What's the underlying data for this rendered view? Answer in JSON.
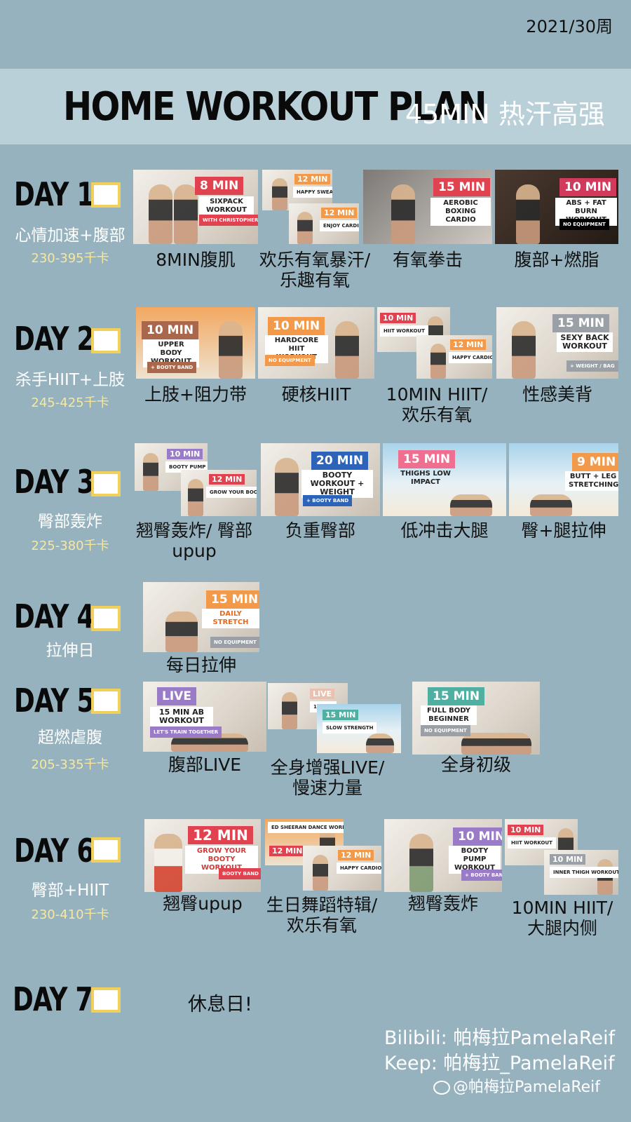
{
  "header": {
    "week": "2021/30周",
    "title": "HOME WORKOUT PLAN",
    "subtitle": "45MIN 热汗高强"
  },
  "days": [
    {
      "label": "DAY 1",
      "theme": "心情加速+腹部",
      "kcal": "230-395千卡",
      "workouts": [
        {
          "caption": "8MIN腹肌",
          "badge": "8 MIN",
          "tag": "SIXPACK WORKOUT",
          "extra": "WITH CHRISTOPHER"
        },
        {
          "caption": "欢乐有氧暴汗/ 乐趣有氧",
          "badge": "12 MIN",
          "tag": "HAPPY SWEAT WORKOUT",
          "badge2": "12 MIN",
          "tag2": "ENJOY CARDIO WORKOUT"
        },
        {
          "caption": "有氧拳击",
          "badge": "15 MIN",
          "tag": "AEROBIC BOXING CARDIO"
        },
        {
          "caption": "腹部+燃脂",
          "badge": "10 MIN",
          "tag": "ABS + FAT BURN WORKOUT",
          "extra": "NO EQUIPMENT"
        }
      ]
    },
    {
      "label": "DAY 2",
      "theme": "杀手HIIT+上肢",
      "kcal": "245-425千卡",
      "workouts": [
        {
          "caption": "上肢+阻力带",
          "badge": "10 MIN",
          "tag": "UPPER BODY WORKOUT",
          "extra": "+ BOOTY BAND"
        },
        {
          "caption": "硬核HIIT",
          "badge": "10 MIN",
          "tag": "HARDCORE HIIT WORKOUT",
          "extra": "NO EQUIPMENT"
        },
        {
          "caption": "10MIN HIIT/ 欢乐有氧",
          "badge": "10 MIN",
          "tag": "HIIT WORKOUT",
          "badge2": "12 MIN",
          "tag2": "HAPPY CARDIO WORKOUT"
        },
        {
          "caption": "性感美背",
          "badge": "15 MIN",
          "tag": "SEXY BACK WORKOUT",
          "extra": "+ WEIGHT / BAG"
        }
      ]
    },
    {
      "label": "DAY 3",
      "theme": "臀部轰炸",
      "kcal": "225-380千卡",
      "workouts": [
        {
          "caption": "翘臀轰炸/ 臀部upup",
          "badge": "10 MIN",
          "tag": "BOOTY PUMP WORKOUT",
          "badge2": "12 MIN",
          "tag2": "GROW YOUR BOOTY WORKOUT"
        },
        {
          "caption": "负重臀部",
          "badge": "20 MIN",
          "tag": "BOOTY WORKOUT + WEIGHT",
          "extra": "+ BOOTY BAND"
        },
        {
          "caption": "低冲击大腿",
          "badge": "15 MIN",
          "tag": "THIGHS LOW IMPACT"
        },
        {
          "caption": "臀+腿拉伸",
          "badge": "9 MIN",
          "tag": "BUTT + LEG STRETCHING"
        }
      ]
    },
    {
      "label": "DAY 4",
      "theme": "拉伸日",
      "kcal": "",
      "workouts": [
        {
          "caption": "每日拉伸",
          "badge": "15 MIN",
          "tag": "DAILY STRETCH",
          "extra": "NO EQUIPMENT"
        }
      ]
    },
    {
      "label": "DAY 5",
      "theme": "超燃虐腹",
      "kcal": "205-335千卡",
      "workouts": [
        {
          "caption": "腹部LIVE",
          "badge": "LIVE",
          "tag": "15 MIN AB WORKOUT",
          "extra": "LET'S TRAIN TOGETHER"
        },
        {
          "caption": "全身增强LIVE/ 慢速力量",
          "badge": "LIVE",
          "tag": "15 MIN",
          "badge2": "15 MIN",
          "tag2": "SLOW STRENGTH"
        },
        {
          "caption": "全身初级",
          "badge": "15 MIN",
          "tag": "FULL BODY BEGINNER",
          "extra": "NO EQUIPMENT"
        }
      ]
    },
    {
      "label": "DAY 6",
      "theme": "臀部+HIIT",
      "kcal": "230-410千卡",
      "workouts": [
        {
          "caption": "翘臀upup",
          "badge": "12 MIN",
          "tag": "GROW YOUR BOOTY WORKOUT",
          "extra": "BOOTY BAND"
        },
        {
          "caption": "生日舞蹈特辑/ 欢乐有氧",
          "badge": "12 MIN",
          "tag": "ED SHEERAN DANCE WORKOUT",
          "badge2": "12 MIN",
          "tag2": "HAPPY CARDIO WORKOUT"
        },
        {
          "caption": "翘臀轰炸",
          "badge": "10 MIN",
          "tag": "BOOTY PUMP WORKOUT",
          "extra": "+ BOOTY BAND"
        },
        {
          "caption": "10MIN HIIT/ 大腿内侧",
          "badge": "10 MIN",
          "tag": "HIIT WORKOUT",
          "badge2": "10 MIN",
          "tag2": "INNER THIGH WORKOUT"
        }
      ]
    },
    {
      "label": "DAY 7",
      "theme": "",
      "kcal": "",
      "rest": "休息日!",
      "workouts": []
    }
  ],
  "footer": {
    "bilibili": "Bilibili: 帕梅拉PamelaReif",
    "keep": "Keep: 帕梅拉_PamelaReif",
    "weibo": "@帕梅拉PamelaReif"
  },
  "colors": {
    "background": "#95b2be",
    "banner": "#b9d0d8",
    "checkbox_border": "#f0cf5a",
    "kcal_text": "#f7e8a0",
    "badge_red": "#e0434f",
    "badge_orange": "#f39a4a",
    "badge_purple": "#9a7bc7",
    "badge_blue": "#2d63b8",
    "badge_pink": "#ef6f90",
    "badge_teal": "#4fb0a2",
    "badge_brown": "#a9684c",
    "badge_gray": "#9aa0a6"
  }
}
